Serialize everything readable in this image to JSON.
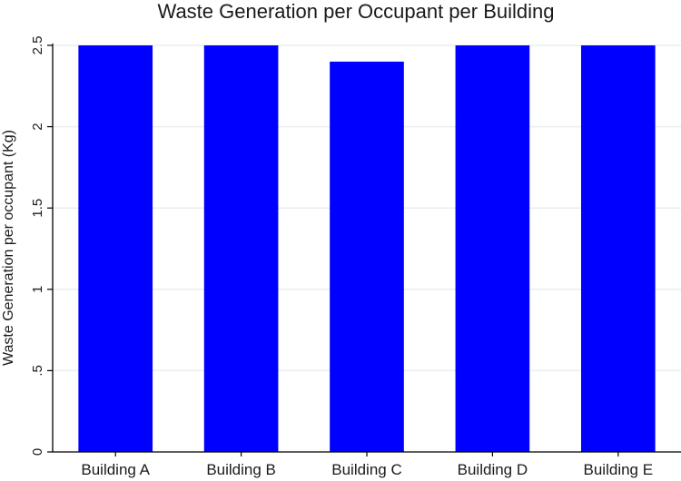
{
  "chart_data": {
    "type": "bar",
    "title": "Waste Generation per Occupant per Building",
    "xlabel": "",
    "ylabel": "Waste Generation per occupant (Kg)",
    "categories": [
      "Building A",
      "Building B",
      "Building C",
      "Building D",
      "Building E"
    ],
    "values": [
      2.5,
      2.5,
      2.4,
      2.5,
      2.5
    ],
    "ylim": [
      0,
      2.5
    ],
    "yticks": [
      0,
      0.5,
      1,
      1.5,
      2,
      2.5
    ],
    "ytick_labels": [
      "0",
      ".5",
      "1",
      "1.5",
      "2",
      "2.5"
    ],
    "grid": true,
    "legend": "none",
    "colors": {
      "bar": "#0000ff",
      "grid": "#e9eef2",
      "axis": "#000000"
    }
  }
}
